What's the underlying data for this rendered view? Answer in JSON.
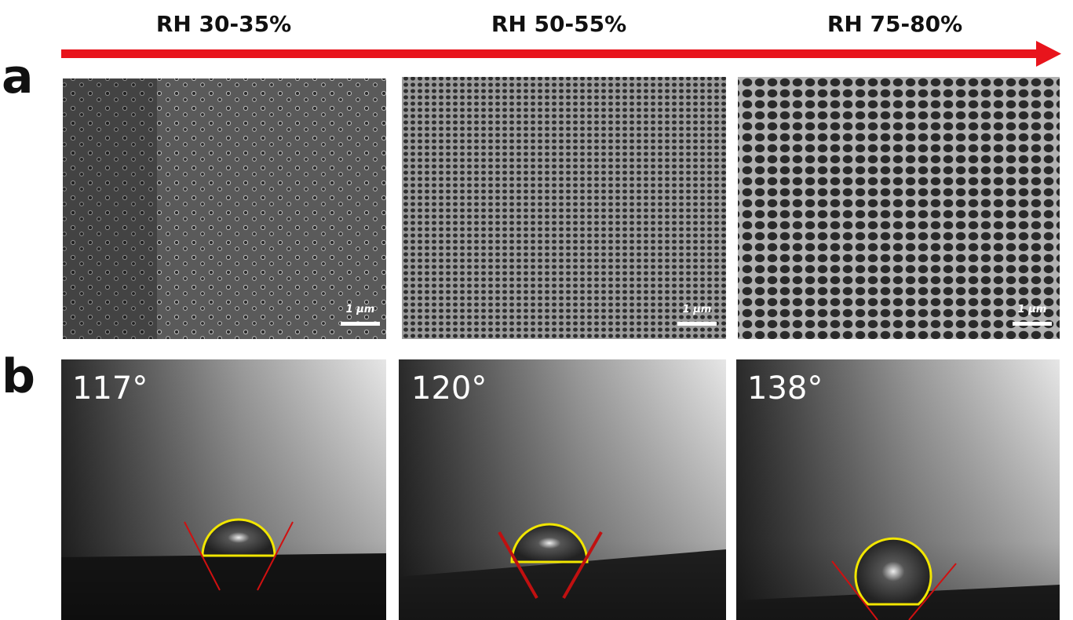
{
  "header": {
    "conditions": [
      "RH 30-35%",
      "RH 50-55%",
      "RH 75-80%"
    ]
  },
  "panel_a": {
    "label": "a",
    "scale_bars": [
      "1 μm",
      "1 μm",
      "1 μm"
    ]
  },
  "panel_b": {
    "label": "b",
    "contact_angles": [
      "117°",
      "120°",
      "138°"
    ]
  }
}
